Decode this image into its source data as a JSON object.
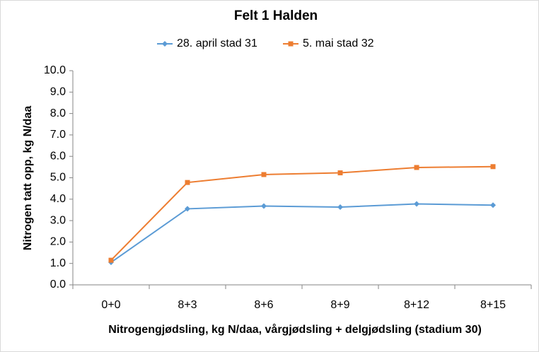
{
  "chart_data": {
    "type": "line",
    "title": "Felt 1 Halden",
    "x_label": "Nitrogengjødsling, kg N/daa, vårgjødsling + delgjødsling (stadium 30)",
    "y_label": "Nitrogen tatt opp, kg N/daa",
    "categories": [
      "0+0",
      "8+3",
      "8+6",
      "8+9",
      "8+12",
      "8+15"
    ],
    "series": [
      {
        "name": "28. april stad 31",
        "color": "#5b9bd5",
        "marker": "diamond",
        "values": [
          1.05,
          3.55,
          3.68,
          3.63,
          3.78,
          3.72
        ]
      },
      {
        "name": "5. mai stad 32",
        "color": "#ed7d31",
        "marker": "square",
        "values": [
          1.15,
          4.78,
          5.15,
          5.23,
          5.48,
          5.52
        ]
      }
    ],
    "ylim": [
      0,
      10
    ],
    "yticks": [
      {
        "value": 0,
        "label": "0.0"
      },
      {
        "value": 1,
        "label": "1.0"
      },
      {
        "value": 2,
        "label": "2.0"
      },
      {
        "value": 3,
        "label": "3.0"
      },
      {
        "value": 4,
        "label": "4.0"
      },
      {
        "value": 5,
        "label": "5.0"
      },
      {
        "value": 6,
        "label": "6.0"
      },
      {
        "value": 7,
        "label": "7.0"
      },
      {
        "value": 8,
        "label": "8.0"
      },
      {
        "value": 9,
        "label": "9.0"
      },
      {
        "value": 10,
        "label": "10.0"
      }
    ],
    "grid": false,
    "legend": "top"
  }
}
